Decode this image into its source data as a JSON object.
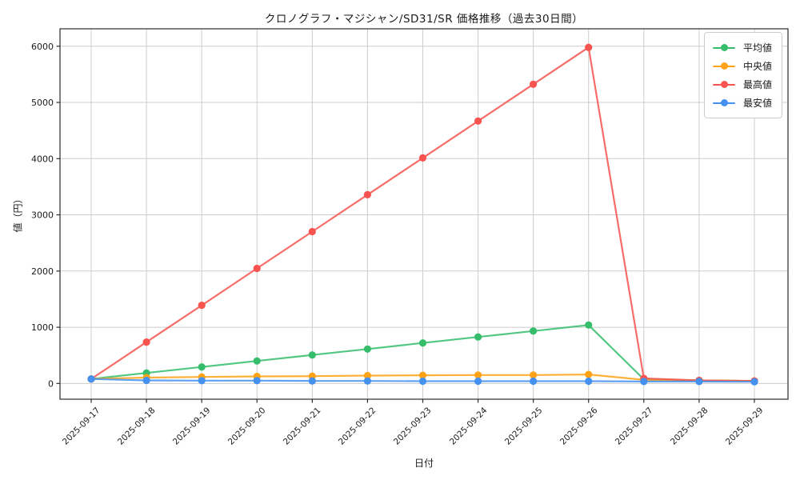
{
  "title": "クロノグラフ・マジシャン/SD31/SR 価格推移（過去30日間）",
  "chart_data": {
    "type": "line",
    "title": "クロノグラフ・マジシャン/SD31/SR 価格推移（過去30日間）",
    "xlabel": "日付",
    "ylabel": "値（円）",
    "x": [
      "2025-09-17",
      "2025-09-18",
      "2025-09-19",
      "2025-09-20",
      "2025-09-21",
      "2025-09-22",
      "2025-09-23",
      "2025-09-24",
      "2025-09-25",
      "2025-09-26",
      "2025-09-27",
      "2025-09-28",
      "2025-09-29"
    ],
    "series": [
      {
        "name": "平均値",
        "color": "#35bd6c",
        "values": [
          80,
          187,
          293,
          400,
          507,
          613,
          720,
          827,
          933,
          1040,
          75,
          55,
          45
        ]
      },
      {
        "name": "中央値",
        "color": "#ffa216",
        "values": [
          80,
          105,
          115,
          125,
          130,
          140,
          145,
          150,
          150,
          160,
          65,
          55,
          45
        ]
      },
      {
        "name": "最高値",
        "color": "#f8534f",
        "values": [
          80,
          736,
          1391,
          2047,
          2702,
          3358,
          4013,
          4669,
          5324,
          5980,
          90,
          55,
          45
        ]
      },
      {
        "name": "最安値",
        "color": "#4591f0",
        "values": [
          80,
          55,
          50,
          50,
          45,
          45,
          40,
          40,
          40,
          40,
          35,
          35,
          30
        ]
      }
    ],
    "yticks": [
      0,
      1000,
      2000,
      3000,
      4000,
      5000,
      6000
    ],
    "ylim": [
      -280,
      6310
    ],
    "grid": true,
    "legend_position": "upper right",
    "legend_order": [
      "平均値",
      "中央値",
      "最高値",
      "最安値"
    ]
  },
  "colors": {
    "background": "#ffffff",
    "grid": "#cccccc",
    "spine": "#2b2b2b",
    "text": "#1a1a1a"
  }
}
